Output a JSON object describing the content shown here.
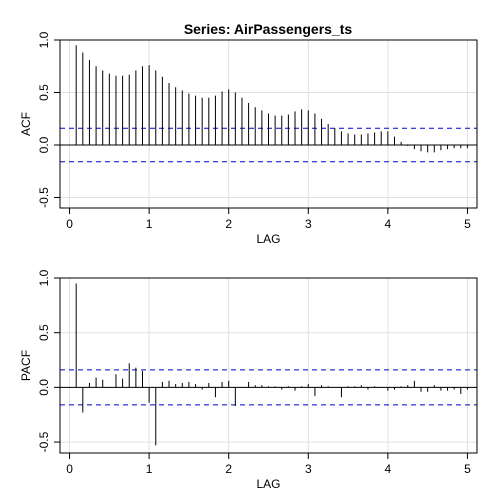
{
  "title": "Series:  AirPassengers_ts",
  "colors": {
    "bars": "#000000",
    "ci": "#0000cd",
    "grid": "#e0e0e0",
    "frame": "#000000"
  },
  "chart_data": [
    {
      "type": "bar",
      "ylabel": "ACF",
      "xlabel": "LAG",
      "xlim": [
        0,
        5
      ],
      "ylim": [
        -0.6,
        1.0
      ],
      "xticks": [
        0,
        1,
        2,
        3,
        4,
        5
      ],
      "yticks": [
        -0.5,
        0.0,
        0.5,
        1.0
      ],
      "grid": true,
      "ci": 0.16,
      "lag_step": 0.08333,
      "values": [
        0.95,
        0.88,
        0.81,
        0.75,
        0.71,
        0.68,
        0.66,
        0.66,
        0.67,
        0.71,
        0.75,
        0.76,
        0.71,
        0.65,
        0.59,
        0.55,
        0.52,
        0.49,
        0.47,
        0.45,
        0.45,
        0.47,
        0.51,
        0.53,
        0.5,
        0.45,
        0.4,
        0.36,
        0.33,
        0.3,
        0.28,
        0.28,
        0.29,
        0.32,
        0.34,
        0.33,
        0.3,
        0.25,
        0.2,
        0.16,
        0.13,
        0.11,
        0.1,
        0.1,
        0.11,
        0.12,
        0.13,
        0.13,
        0.08,
        0.03,
        -0.01,
        -0.04,
        -0.06,
        -0.07,
        -0.07,
        -0.05,
        -0.04,
        -0.03,
        -0.03,
        -0.03
      ]
    },
    {
      "type": "bar",
      "ylabel": "PACF",
      "xlabel": "LAG",
      "xlim": [
        0,
        5
      ],
      "ylim": [
        -0.6,
        1.0
      ],
      "xticks": [
        0,
        1,
        2,
        3,
        4,
        5
      ],
      "yticks": [
        -0.5,
        0.0,
        0.5,
        1.0
      ],
      "grid": true,
      "ci": 0.16,
      "lag_step": 0.08333,
      "values": [
        0.95,
        -0.23,
        0.04,
        0.09,
        0.07,
        0.0,
        0.12,
        0.08,
        0.22,
        0.18,
        0.15,
        -0.14,
        -0.53,
        0.05,
        0.06,
        0.03,
        0.04,
        0.05,
        0.03,
        -0.02,
        0.04,
        -0.09,
        0.05,
        0.06,
        -0.17,
        0.0,
        0.05,
        0.02,
        0.02,
        0.01,
        0.01,
        -0.02,
        0.01,
        -0.03,
        0.01,
        0.03,
        -0.08,
        0.02,
        0.01,
        0.0,
        -0.09,
        0.01,
        0.01,
        0.02,
        -0.02,
        0.01,
        0.0,
        -0.03,
        -0.02,
        0.01,
        0.02,
        0.06,
        -0.04,
        -0.04,
        0.02,
        -0.03,
        -0.03,
        -0.02,
        -0.06,
        -0.02
      ]
    }
  ]
}
